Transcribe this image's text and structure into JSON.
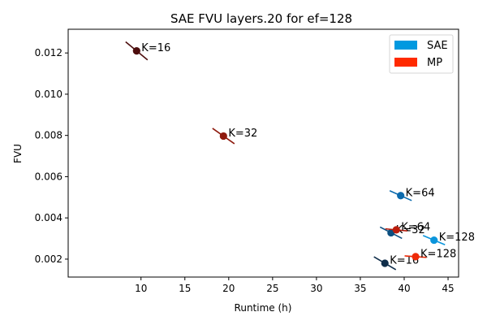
{
  "chart_data": {
    "type": "scatter",
    "title": "SAE FVU layers.20 for ef=128",
    "xlabel": "Runtime (h)",
    "ylabel": "FVU",
    "xlim": [
      1.7,
      46.2
    ],
    "ylim": [
      0.00113,
      0.01315
    ],
    "x_ticks": [
      10,
      15,
      20,
      25,
      30,
      35,
      40,
      45
    ],
    "x_tick_labels": [
      "10",
      "15",
      "20",
      "25",
      "30",
      "35",
      "40",
      "45"
    ],
    "y_ticks": [
      0.002,
      0.004,
      0.006,
      0.008,
      0.01,
      0.012
    ],
    "y_tick_labels": [
      "0.002",
      "0.004",
      "0.006",
      "0.008",
      "0.010",
      "0.012"
    ],
    "grid": false,
    "legend_position": "top-right",
    "series": [
      {
        "name": "SAE",
        "legend_color": "#0099e0",
        "points": [
          {
            "x": 37.8,
            "y": 0.0018,
            "label": "K=16",
            "color": "#0f2d4a",
            "slope": -0.00025
          },
          {
            "x": 38.5,
            "y": 0.00328,
            "label": "K=32",
            "color": "#0c4f80",
            "slope": -0.00022
          },
          {
            "x": 39.6,
            "y": 0.00508,
            "label": "K=64",
            "color": "#0b6aad",
            "slope": -0.00019
          },
          {
            "x": 43.4,
            "y": 0.00292,
            "label": "K=128",
            "color": "#0b95dc",
            "slope": -0.00018
          }
        ]
      },
      {
        "name": "MP",
        "legend_color": "#ff2a00",
        "points": [
          {
            "x": 9.5,
            "y": 0.0121,
            "label": "K=16",
            "color": "#4d0e0e",
            "slope": -0.00035
          },
          {
            "x": 19.4,
            "y": 0.00797,
            "label": "K=32",
            "color": "#8e1a0e",
            "slope": -0.0003
          },
          {
            "x": 39.1,
            "y": 0.00342,
            "label": "K=64",
            "color": "#bb1d0c",
            "slope": -4e-05
          },
          {
            "x": 41.3,
            "y": 0.00212,
            "label": "K=128",
            "color": "#ee2a08",
            "slope": -3e-05
          }
        ]
      }
    ]
  }
}
